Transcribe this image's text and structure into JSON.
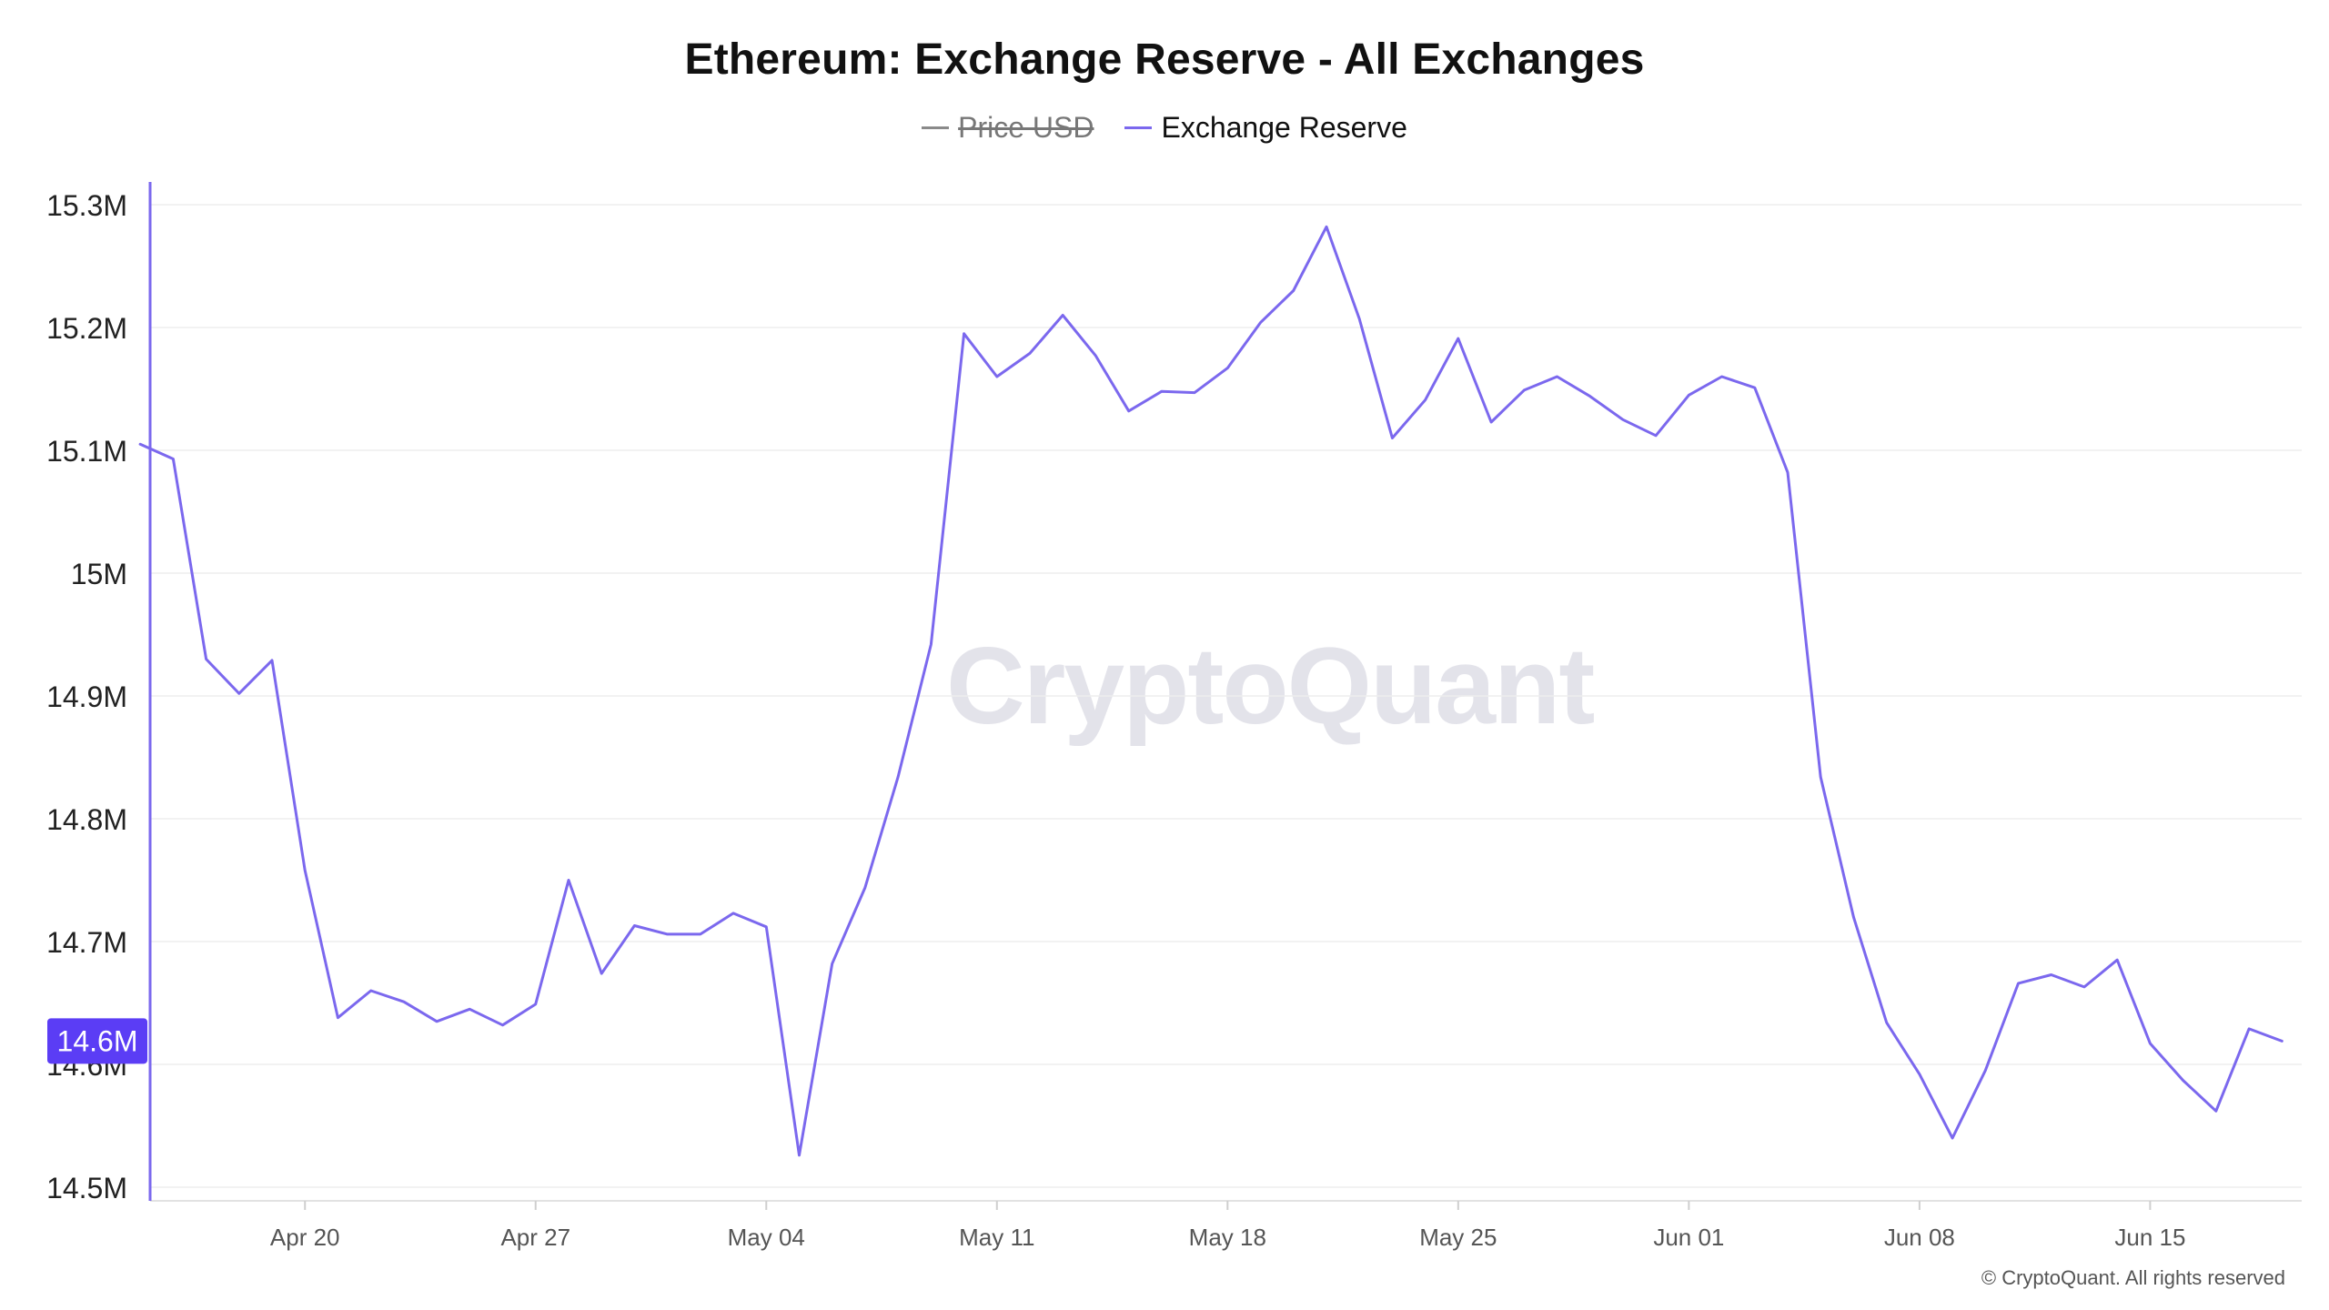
{
  "chart_data": {
    "type": "line",
    "title": "Ethereum: Exchange Reserve - All Exchanges",
    "legend": [
      {
        "name": "Price USD",
        "color": "#8a8a8a",
        "hidden": true
      },
      {
        "name": "Exchange Reserve",
        "color": "#7b68ee",
        "hidden": false
      }
    ],
    "ylim": [
      14.5,
      15.3
    ],
    "y_ticks": [
      15.3,
      15.2,
      15.1,
      15.0,
      14.9,
      14.8,
      14.7,
      14.6,
      14.5
    ],
    "y_tick_labels": [
      "15.3M",
      "15.2M",
      "15.1M",
      "15M",
      "14.9M",
      "14.8M",
      "14.7M",
      "14.6M",
      "14.5M"
    ],
    "x_start": "2025-04-15",
    "x_tick_labels": [
      "Apr 20",
      "Apr 27",
      "May 04",
      "May 11",
      "May 18",
      "May 25",
      "Jun 01",
      "Jun 08",
      "Jun 15"
    ],
    "x_tick_dates": [
      "2025-04-20",
      "2025-04-27",
      "2025-05-04",
      "2025-05-11",
      "2025-05-18",
      "2025-05-25",
      "2025-06-01",
      "2025-06-08",
      "2025-06-15"
    ],
    "series": [
      {
        "name": "Exchange Reserve",
        "color": "#7b68ee",
        "x": [
          "2025-04-15",
          "2025-04-16",
          "2025-04-17",
          "2025-04-18",
          "2025-04-19",
          "2025-04-20",
          "2025-04-21",
          "2025-04-22",
          "2025-04-23",
          "2025-04-24",
          "2025-04-25",
          "2025-04-26",
          "2025-04-27",
          "2025-04-28",
          "2025-04-29",
          "2025-04-30",
          "2025-05-01",
          "2025-05-02",
          "2025-05-03",
          "2025-05-04",
          "2025-05-05",
          "2025-05-06",
          "2025-05-07",
          "2025-05-08",
          "2025-05-09",
          "2025-05-10",
          "2025-05-11",
          "2025-05-12",
          "2025-05-13",
          "2025-05-14",
          "2025-05-15",
          "2025-05-16",
          "2025-05-17",
          "2025-05-18",
          "2025-05-19",
          "2025-05-20",
          "2025-05-21",
          "2025-05-22",
          "2025-05-23",
          "2025-05-24",
          "2025-05-25",
          "2025-05-26",
          "2025-05-27",
          "2025-05-28",
          "2025-05-29",
          "2025-05-30",
          "2025-05-31",
          "2025-06-01",
          "2025-06-02",
          "2025-06-03",
          "2025-06-04",
          "2025-06-05",
          "2025-06-06",
          "2025-06-07",
          "2025-06-08",
          "2025-06-09",
          "2025-06-10",
          "2025-06-11",
          "2025-06-12",
          "2025-06-13",
          "2025-06-14",
          "2025-06-15",
          "2025-06-16",
          "2025-06-17",
          "2025-06-18",
          "2025-06-19"
        ],
        "values": [
          15.105,
          15.093,
          14.93,
          14.902,
          14.929,
          14.758,
          14.638,
          14.66,
          14.651,
          14.635,
          14.645,
          14.632,
          14.649,
          14.75,
          14.674,
          14.713,
          14.706,
          14.706,
          14.723,
          14.712,
          14.526,
          14.682,
          14.744,
          14.834,
          14.942,
          15.195,
          15.16,
          15.179,
          15.21,
          15.177,
          15.132,
          15.148,
          15.147,
          15.167,
          15.204,
          15.23,
          15.282,
          15.207,
          15.11,
          15.141,
          15.191,
          15.123,
          15.149,
          15.16,
          15.144,
          15.125,
          15.112,
          15.145,
          15.16,
          15.151,
          15.082,
          14.834,
          14.72,
          14.634,
          14.592,
          14.54,
          14.595,
          14.666,
          14.673,
          14.663,
          14.685,
          14.617,
          14.587,
          14.562,
          14.629,
          14.619
        ]
      }
    ],
    "current_value_label": "14.6M",
    "grid": true
  },
  "watermark": "CryptoQuant",
  "copyright": "© CryptoQuant. All rights reserved",
  "colors": {
    "line": "#7b68ee",
    "axis_accent": "#7b68ee",
    "current_badge_bg": "#5b3df5",
    "grid": "#eeeeee",
    "axis": "#e2e2e2"
  }
}
